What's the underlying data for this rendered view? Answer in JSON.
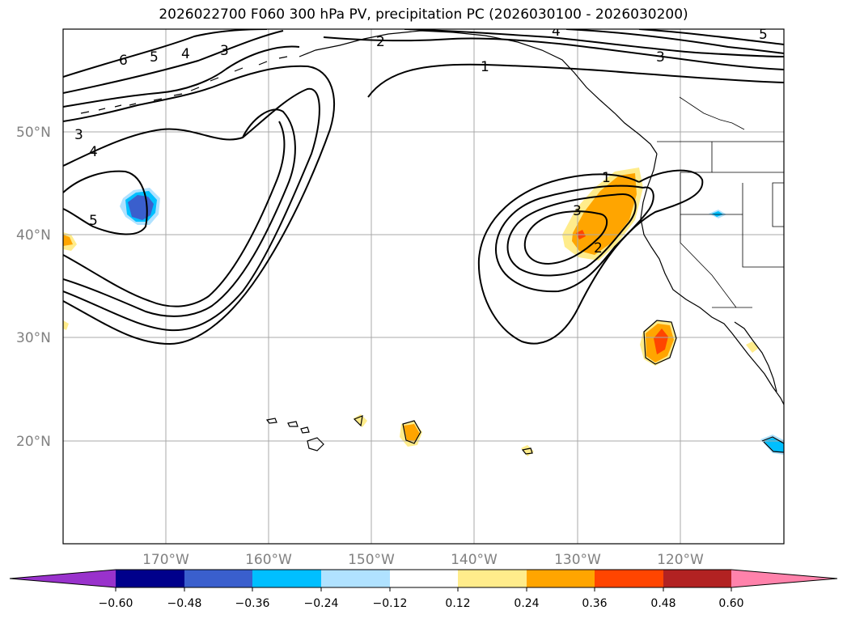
{
  "title": "2026022700 F060 300 hPa PV, precipitation PC (2026030100 - 2026030200)",
  "map": {
    "lat_labels": [
      "50°N",
      "40°N",
      "30°N",
      "20°N"
    ],
    "lon_labels": [
      "170°W",
      "160°W",
      "150°W",
      "140°W",
      "130°W",
      "120°W"
    ],
    "pv_contour_labels": [
      "6",
      "5",
      "4",
      "3",
      "2",
      "1",
      "3",
      "3",
      "4",
      "5",
      "1",
      "3",
      "2",
      "4",
      "5"
    ],
    "colors": {
      "contour": "#000000",
      "grid": "#a9a9a9",
      "coast": "#000000"
    }
  },
  "colorbar": {
    "tick_labels": [
      "−0.60",
      "−0.48",
      "−0.36",
      "−0.24",
      "−0.12",
      "0.12",
      "0.24",
      "0.36",
      "0.48",
      "0.60"
    ],
    "colors": [
      "#9932cc",
      "#00008b",
      "#3a5fcd",
      "#00bfff",
      "#b0e2ff",
      "#ffffff",
      "#ffec8b",
      "#ffa500",
      "#ff4500",
      "#b22222",
      "#ff82ab"
    ]
  }
}
